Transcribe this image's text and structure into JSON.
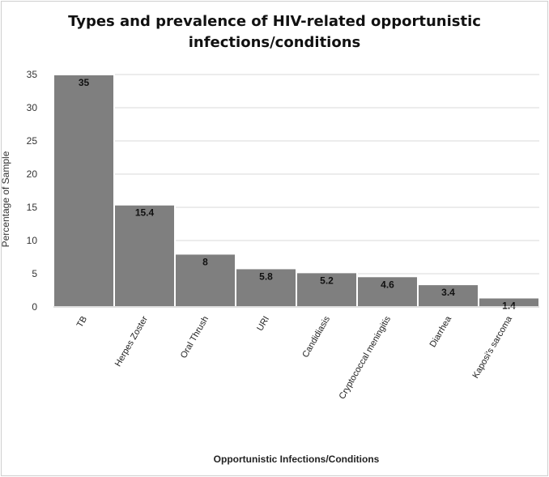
{
  "chart_data": {
    "type": "bar",
    "title_line1": "Types and prevalence of HIV-related opportunistic",
    "title_line2": "infections/conditions",
    "xlabel": "Opportunistic Infections/Conditions",
    "ylabel": "Percentage of Sample",
    "categories": [
      "TB",
      "Herpes Zoster",
      "Oral Thrush",
      "URI",
      "Candidiasis",
      "Cryptococcal meningitis",
      "Diarrhea",
      "Kaposi's sarcoma"
    ],
    "values": [
      35,
      15.4,
      8,
      5.8,
      5.2,
      4.6,
      3.4,
      1.4
    ],
    "value_labels": [
      "35",
      "15.4",
      "8",
      "5.8",
      "5.2",
      "4.6",
      "3.4",
      "1.4"
    ],
    "ylim": [
      0,
      35
    ],
    "yticks": [
      0,
      5,
      10,
      15,
      20,
      25,
      30,
      35
    ],
    "grid": true,
    "bar_color": "#7f7f7f",
    "bar_edge_color": "#ffffff",
    "grid_color": "#d9d9d9"
  }
}
